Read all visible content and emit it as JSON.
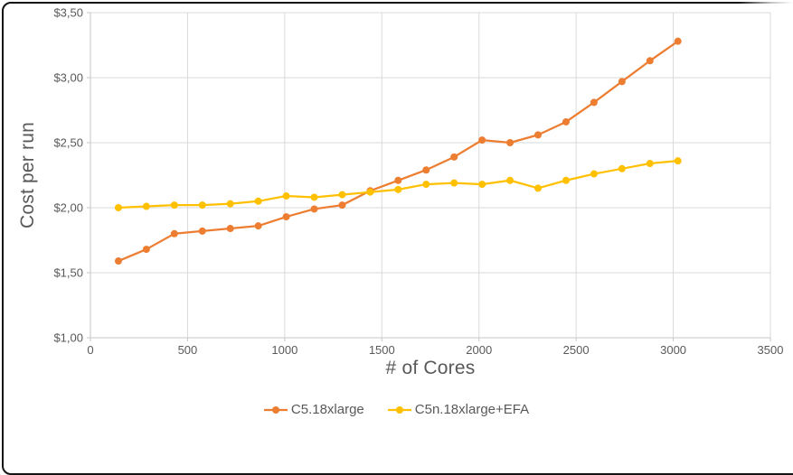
{
  "chart_data": {
    "type": "line",
    "title": "",
    "xlabel": "# of Cores",
    "ylabel": "Cost per run",
    "xlim": [
      0,
      3500
    ],
    "ylim": [
      1.0,
      3.5
    ],
    "grid": true,
    "legend_position": "bottom",
    "x_ticks": [
      {
        "value": 0,
        "label": "0"
      },
      {
        "value": 500,
        "label": "500"
      },
      {
        "value": 1000,
        "label": "1000"
      },
      {
        "value": 1500,
        "label": "1500"
      },
      {
        "value": 2000,
        "label": "2000"
      },
      {
        "value": 2500,
        "label": "2500"
      },
      {
        "value": 3000,
        "label": "3000"
      },
      {
        "value": 3500,
        "label": "3500"
      }
    ],
    "y_ticks": [
      {
        "value": 1.0,
        "label": "$1,00"
      },
      {
        "value": 1.5,
        "label": "$1,50"
      },
      {
        "value": 2.0,
        "label": "$2,00"
      },
      {
        "value": 2.5,
        "label": "$2,50"
      },
      {
        "value": 3.0,
        "label": "$3,00"
      },
      {
        "value": 3.5,
        "label": "$3,50"
      }
    ],
    "x": [
      144,
      288,
      432,
      576,
      720,
      864,
      1008,
      1152,
      1296,
      1440,
      1584,
      1728,
      1872,
      2016,
      2160,
      2304,
      2448,
      2592,
      2736,
      2880,
      3024
    ],
    "series": [
      {
        "name": "C5.18xlarge",
        "color": "#ED7D31",
        "marker": "circle",
        "values": [
          1.59,
          1.68,
          1.8,
          1.82,
          1.84,
          1.86,
          1.93,
          1.99,
          2.02,
          2.13,
          2.21,
          2.29,
          2.39,
          2.52,
          2.5,
          2.56,
          2.66,
          2.81,
          2.97,
          3.13,
          3.28
        ]
      },
      {
        "name": "C5n.18xlarge+EFA",
        "color": "#FFC000",
        "marker": "circle",
        "values": [
          2.0,
          2.01,
          2.02,
          2.02,
          2.03,
          2.05,
          2.09,
          2.08,
          2.1,
          2.12,
          2.14,
          2.18,
          2.19,
          2.18,
          2.21,
          2.15,
          2.21,
          2.26,
          2.3,
          2.34,
          2.36
        ]
      }
    ]
  },
  "style": {
    "gridline_color": "#D9D9D9",
    "axis_color": "#C6C6C6",
    "tick_label_color": "#595959",
    "axis_title_color": "#595959",
    "background": "#FFFFFF",
    "frame_color": "#141414"
  }
}
